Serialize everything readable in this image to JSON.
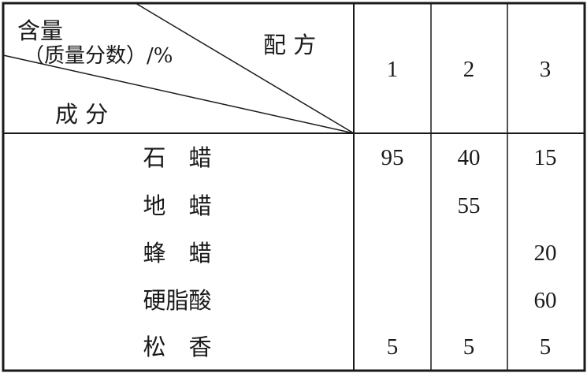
{
  "header": {
    "corner_top_label": "含量",
    "corner_unit_label": "（质量分数）/%",
    "corner_right_label": "配 方",
    "corner_bottom_label": "成 分",
    "formula_columns": [
      "1",
      "2",
      "3"
    ]
  },
  "rows": [
    {
      "ingredient": "石　蜡",
      "values": [
        "95",
        "40",
        "15"
      ]
    },
    {
      "ingredient": "地　蜡",
      "values": [
        "",
        "55",
        ""
      ]
    },
    {
      "ingredient": "蜂　蜡",
      "values": [
        "",
        "",
        "20"
      ]
    },
    {
      "ingredient": "硬脂酸",
      "values": [
        "",
        "",
        "60"
      ]
    },
    {
      "ingredient": "松　香",
      "values": [
        "5",
        "5",
        "5"
      ]
    }
  ]
}
